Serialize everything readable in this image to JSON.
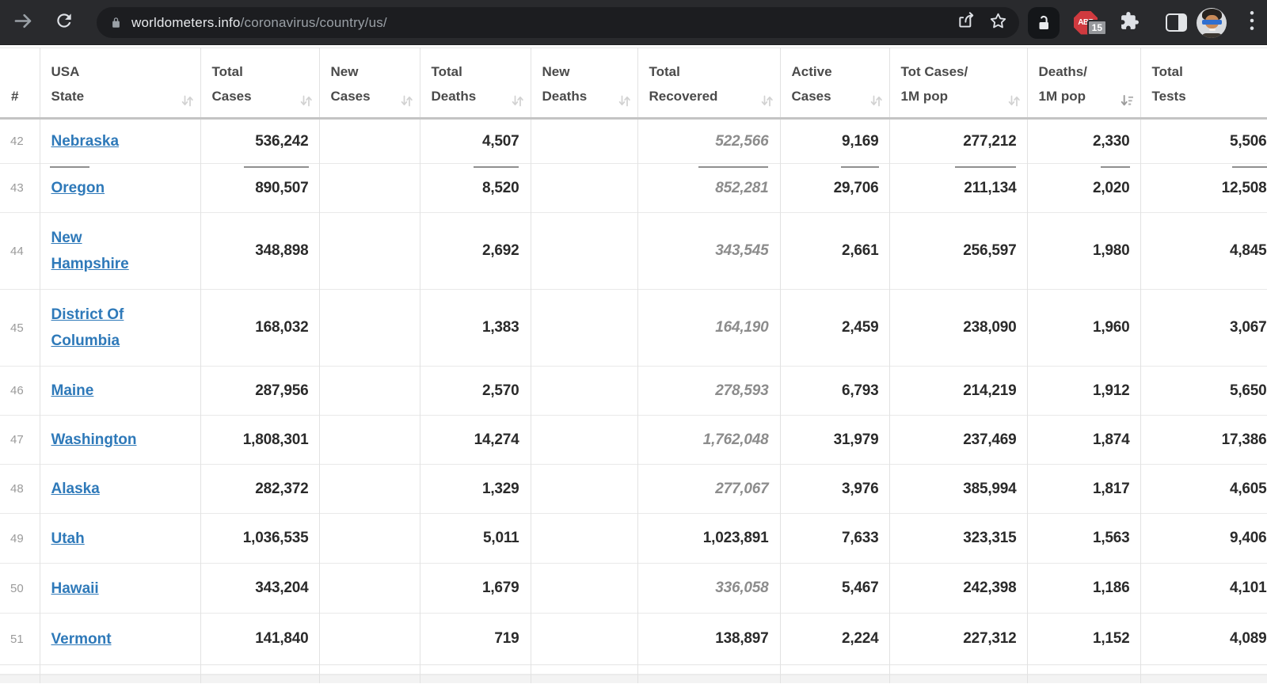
{
  "browser": {
    "url": {
      "host": "worldometers.info",
      "path": "/coronavirus/country/us/"
    },
    "adblock_label": "ABP",
    "adblock_badge": "15",
    "icons": {
      "forward": "arrow-right",
      "reload": "refresh-circular-arrow",
      "ssl": "padlock",
      "share": "share-from-box",
      "bookmark": "star-outline",
      "extension_lock": "open-padlock",
      "adblock": "abp-octagon",
      "extensions": "puzzle-piece",
      "side_panel": "side-panel-rect",
      "profile": "cartoon-avatar",
      "menu": "kebab-vertical"
    },
    "colors": {
      "toolbar_bg": "#292a2d",
      "omnibox_bg": "#1c1d20",
      "abp_red": "#d03a3f"
    }
  },
  "table": {
    "colors": {
      "link": "#2e79b9",
      "number": "#2a2a2a",
      "muted": "#8c8c8c"
    },
    "columns": [
      {
        "key": "num",
        "line1": "",
        "line2": "#",
        "sort": "none",
        "align": "left"
      },
      {
        "key": "state",
        "line1": "USA",
        "line2": "State",
        "sort": "default",
        "align": "left"
      },
      {
        "key": "total_cases",
        "line1": "Total",
        "line2": "Cases",
        "sort": "default",
        "align": "right"
      },
      {
        "key": "new_cases",
        "line1": "New",
        "line2": "Cases",
        "sort": "default",
        "align": "right"
      },
      {
        "key": "total_deaths",
        "line1": "Total",
        "line2": "Deaths",
        "sort": "default",
        "align": "right"
      },
      {
        "key": "new_deaths",
        "line1": "New",
        "line2": "Deaths",
        "sort": "default",
        "align": "right"
      },
      {
        "key": "total_recovered",
        "line1": "Total",
        "line2": "Recovered",
        "sort": "default",
        "align": "right"
      },
      {
        "key": "active_cases",
        "line1": "Active",
        "line2": "Cases",
        "sort": "default",
        "align": "right"
      },
      {
        "key": "cases_per_1m",
        "line1": "Tot Cases/",
        "line2": "1M pop",
        "sort": "default",
        "align": "right"
      },
      {
        "key": "deaths_per_1m",
        "line1": "Deaths/",
        "line2": "1M pop",
        "sort": "active-desc",
        "align": "right"
      },
      {
        "key": "total_tests",
        "line1": "Total",
        "line2": "Tests",
        "sort": "none",
        "align": "right"
      }
    ],
    "rows": [
      {
        "num": "42",
        "state": "Nebraska",
        "total_cases": "536,242",
        "new_cases": "",
        "total_deaths": "4,507",
        "new_deaths": "",
        "total_recovered": "522,566",
        "recovered_muted": true,
        "active_cases": "9,169",
        "cases_per_1m": "277,212",
        "deaths_per_1m": "2,330",
        "total_tests": "5,506"
      },
      {
        "num": "43",
        "state": "Oregon",
        "total_cases": "890,507",
        "new_cases": "",
        "total_deaths": "8,520",
        "new_deaths": "",
        "total_recovered": "852,281",
        "recovered_muted": true,
        "active_cases": "29,706",
        "cases_per_1m": "211,134",
        "deaths_per_1m": "2,020",
        "total_tests": "12,508"
      },
      {
        "num": "44",
        "state": "New Hampshire",
        "total_cases": "348,898",
        "new_cases": "",
        "total_deaths": "2,692",
        "new_deaths": "",
        "total_recovered": "343,545",
        "recovered_muted": true,
        "active_cases": "2,661",
        "cases_per_1m": "256,597",
        "deaths_per_1m": "1,980",
        "total_tests": "4,845"
      },
      {
        "num": "45",
        "state": "District Of Columbia",
        "total_cases": "168,032",
        "new_cases": "",
        "total_deaths": "1,383",
        "new_deaths": "",
        "total_recovered": "164,190",
        "recovered_muted": true,
        "active_cases": "2,459",
        "cases_per_1m": "238,090",
        "deaths_per_1m": "1,960",
        "total_tests": "3,067"
      },
      {
        "num": "46",
        "state": "Maine",
        "total_cases": "287,956",
        "new_cases": "",
        "total_deaths": "2,570",
        "new_deaths": "",
        "total_recovered": "278,593",
        "recovered_muted": true,
        "active_cases": "6,793",
        "cases_per_1m": "214,219",
        "deaths_per_1m": "1,912",
        "total_tests": "5,650"
      },
      {
        "num": "47",
        "state": "Washington",
        "total_cases": "1,808,301",
        "new_cases": "",
        "total_deaths": "14,274",
        "new_deaths": "",
        "total_recovered": "1,762,048",
        "recovered_muted": true,
        "active_cases": "31,979",
        "cases_per_1m": "237,469",
        "deaths_per_1m": "1,874",
        "total_tests": "17,386"
      },
      {
        "num": "48",
        "state": "Alaska",
        "total_cases": "282,372",
        "new_cases": "",
        "total_deaths": "1,329",
        "new_deaths": "",
        "total_recovered": "277,067",
        "recovered_muted": true,
        "active_cases": "3,976",
        "cases_per_1m": "385,994",
        "deaths_per_1m": "1,817",
        "total_tests": "4,605"
      },
      {
        "num": "49",
        "state": "Utah",
        "total_cases": "1,036,535",
        "new_cases": "",
        "total_deaths": "5,011",
        "new_deaths": "",
        "total_recovered": "1,023,891",
        "recovered_muted": false,
        "active_cases": "7,633",
        "cases_per_1m": "323,315",
        "deaths_per_1m": "1,563",
        "total_tests": "9,406"
      },
      {
        "num": "50",
        "state": "Hawaii",
        "total_cases": "343,204",
        "new_cases": "",
        "total_deaths": "1,679",
        "new_deaths": "",
        "total_recovered": "336,058",
        "recovered_muted": true,
        "active_cases": "5,467",
        "cases_per_1m": "242,398",
        "deaths_per_1m": "1,186",
        "total_tests": "4,101"
      },
      {
        "num": "51",
        "state": "Vermont",
        "total_cases": "141,840",
        "new_cases": "",
        "total_deaths": "719",
        "new_deaths": "",
        "total_recovered": "138,897",
        "recovered_muted": false,
        "active_cases": "2,224",
        "cases_per_1m": "227,312",
        "deaths_per_1m": "1,152",
        "total_tests": "4,089"
      }
    ]
  }
}
